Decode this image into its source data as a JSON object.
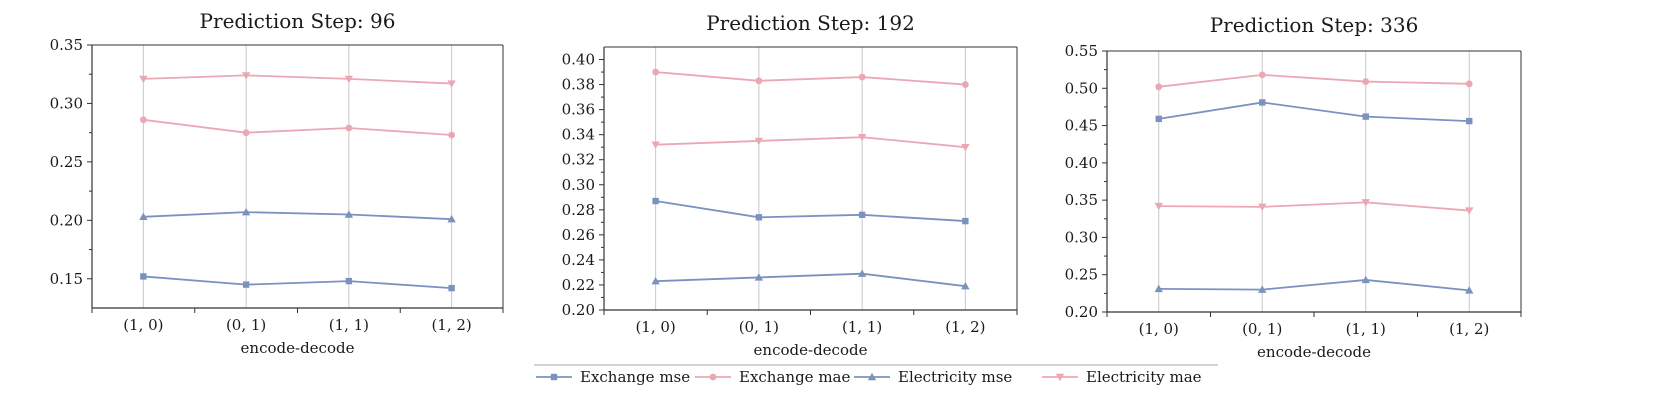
{
  "chart_data": [
    {
      "type": "line",
      "title": "Prediction Step: 96",
      "xlabel": "encode-decode",
      "ylabel": "",
      "categories": [
        "(1, 0)",
        "(0, 1)",
        "(1, 1)",
        "(1, 2)"
      ],
      "ylim": [
        0.125,
        0.35
      ],
      "yticks": [
        0.15,
        0.2,
        0.25,
        0.3,
        0.35
      ],
      "ytick_labels": [
        "0.15",
        "0.20",
        "0.25",
        "0.30",
        "0.35"
      ],
      "series": [
        {
          "name": "Exchange mse",
          "values": [
            0.152,
            0.145,
            0.148,
            0.142
          ]
        },
        {
          "name": "Exchange mae",
          "values": [
            0.286,
            0.275,
            0.279,
            0.273
          ]
        },
        {
          "name": "Electricity mse",
          "values": [
            0.203,
            0.207,
            0.205,
            0.201
          ]
        },
        {
          "name": "Electricity mae",
          "values": [
            0.321,
            0.324,
            0.321,
            0.317
          ]
        }
      ]
    },
    {
      "type": "line",
      "title": "Prediction Step: 192",
      "xlabel": "encode-decode",
      "ylabel": "",
      "categories": [
        "(1, 0)",
        "(0, 1)",
        "(1, 1)",
        "(1, 2)"
      ],
      "ylim": [
        0.2,
        0.41
      ],
      "yticks": [
        0.2,
        0.22,
        0.24,
        0.26,
        0.28,
        0.3,
        0.32,
        0.34,
        0.36,
        0.38,
        0.4
      ],
      "ytick_labels": [
        "0.20",
        "0.22",
        "0.24",
        "0.26",
        "0.28",
        "0.30",
        "0.32",
        "0.34",
        "0.36",
        "0.38",
        "0.40"
      ],
      "series": [
        {
          "name": "Exchange mse",
          "values": [
            0.287,
            0.274,
            0.276,
            0.271
          ]
        },
        {
          "name": "Exchange mae",
          "values": [
            0.39,
            0.383,
            0.386,
            0.38
          ]
        },
        {
          "name": "Electricity mse",
          "values": [
            0.223,
            0.226,
            0.229,
            0.219
          ]
        },
        {
          "name": "Electricity mae",
          "values": [
            0.332,
            0.335,
            0.338,
            0.33
          ]
        }
      ]
    },
    {
      "type": "line",
      "title": "Prediction Step: 336",
      "xlabel": "encode-decode",
      "ylabel": "",
      "categories": [
        "(1, 0)",
        "(0, 1)",
        "(1, 1)",
        "(1, 2)"
      ],
      "ylim": [
        0.2,
        0.55
      ],
      "yticks": [
        0.2,
        0.25,
        0.3,
        0.35,
        0.4,
        0.45,
        0.5,
        0.55
      ],
      "ytick_labels": [
        "0.20",
        "0.25",
        "0.30",
        "0.35",
        "0.40",
        "0.45",
        "0.50",
        "0.55"
      ],
      "series": [
        {
          "name": "Exchange mse",
          "values": [
            0.459,
            0.481,
            0.462,
            0.456
          ]
        },
        {
          "name": "Exchange mae",
          "values": [
            0.502,
            0.518,
            0.509,
            0.506
          ]
        },
        {
          "name": "Electricity mse",
          "values": [
            0.231,
            0.23,
            0.243,
            0.229
          ]
        },
        {
          "name": "Electricity mae",
          "values": [
            0.342,
            0.341,
            0.347,
            0.336
          ]
        }
      ]
    }
  ],
  "legend": {
    "placement": "bottom-center",
    "entries": [
      {
        "label": "Exchange mse",
        "color": "#7b92c0",
        "marker": "square"
      },
      {
        "label": "Exchange mae",
        "color": "#eba8b4",
        "marker": "circle"
      },
      {
        "label": "Electricity mse",
        "color": "#7b92c0",
        "marker": "triangle-up"
      },
      {
        "label": "Electricity mae",
        "color": "#eba8b4",
        "marker": "triangle-down"
      }
    ]
  },
  "colors": {
    "mse": "#7b92c0",
    "mae": "#eba8b4",
    "grid": "#c8c8c8",
    "axis": "#333333"
  }
}
